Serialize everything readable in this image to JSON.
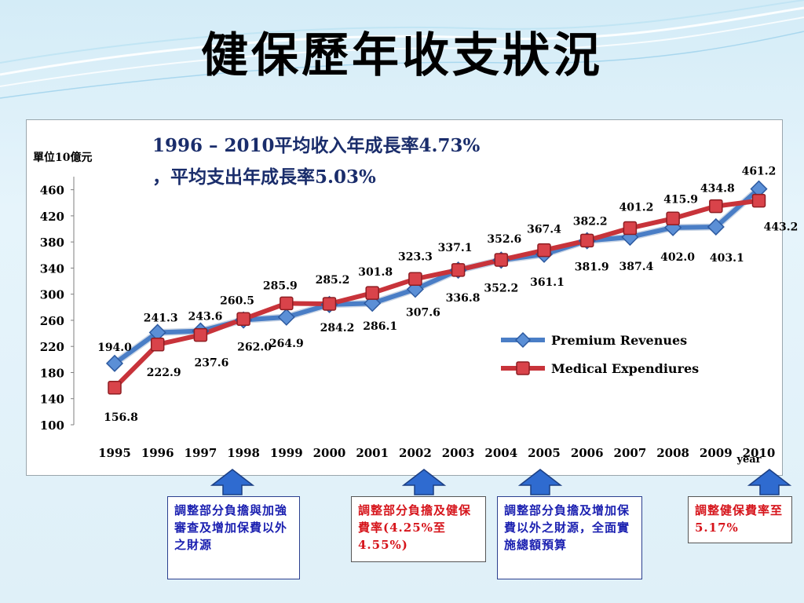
{
  "slide": {
    "title": "健保歷年收支狀況"
  },
  "chart_data": {
    "type": "line",
    "unit_label": "單位10億元",
    "annotation_line1": "1996 – 2010平均收入年成長率4.73%",
    "annotation_line2": "，平均支出年成長率5.03%",
    "xlabel": "year",
    "ylabel": "",
    "ylim": [
      100,
      480
    ],
    "yticks": [
      100,
      140,
      180,
      220,
      260,
      300,
      340,
      380,
      420,
      460
    ],
    "categories": [
      "1995",
      "1996",
      "1997",
      "1998",
      "1999",
      "2000",
      "2001",
      "2002",
      "2003",
      "2004",
      "2005",
      "2006",
      "2007",
      "2008",
      "2009",
      "2010"
    ],
    "legend_position": "right",
    "series": [
      {
        "name": "Premium Revenues",
        "color": "#4a7ec6",
        "marker": "diamond",
        "values": [
          194.0,
          241.3,
          243.6,
          260.5,
          264.9,
          284.2,
          286.1,
          307.6,
          336.8,
          352.2,
          361.1,
          381.9,
          387.4,
          402.0,
          403.1,
          461.2
        ],
        "labels": [
          "194.0",
          "241.3",
          "243.6",
          "260.5",
          "264.9",
          "284.2",
          "286.1",
          "307.6",
          "336.8",
          "352.2",
          "361.1",
          "381.9",
          "387.4",
          "402.0",
          "403.1",
          "461.2"
        ]
      },
      {
        "name": "Medical Expendiures",
        "color": "#c8333a",
        "marker": "square",
        "values": [
          156.8,
          222.9,
          237.6,
          262.0,
          285.9,
          285.2,
          301.8,
          323.3,
          337.1,
          352.6,
          367.4,
          382.2,
          401.2,
          415.9,
          434.8,
          443.2
        ],
        "labels": [
          "156.8",
          "222.9",
          "237.6",
          "262.0",
          "285.9",
          "285.2",
          "301.8",
          "323.3",
          "337.1",
          "352.6",
          "367.4",
          "382.2",
          "401.2",
          "415.9",
          "434.8",
          "443.2"
        ]
      }
    ]
  },
  "notes": [
    {
      "text": "調整部分負擔與加強審查及增加保費以外之財源",
      "color": "blue"
    },
    {
      "text": "調整部分負擔及健保費率(4.25%至4.55%)",
      "color": "red"
    },
    {
      "text": "調整部分負擔及增加保費以外之財源，全面實施總額預算",
      "color": "blue"
    },
    {
      "text": "調整健保費率至5.17%",
      "color": "red"
    }
  ]
}
